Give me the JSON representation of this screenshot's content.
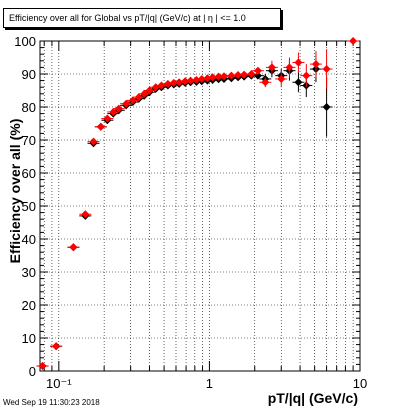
{
  "title": "Efficiency over all for Global vs pT/|q| (GeV/c) at |  η | <= 1.0",
  "timestamp": "Wed Sep 19 11:30:23 2018",
  "chart_data": {
    "type": "scatter",
    "title": "Efficiency over all for Global vs pT/|q| (GeV/c) at |  η | <= 1.0",
    "xlabel": "pT/|q| (GeV/c)",
    "ylabel": "Efficiency over all (%)",
    "x_scale": "log",
    "xlim": [
      0.075,
      10
    ],
    "ylim": [
      0,
      100
    ],
    "x_ticks": [
      {
        "value": 0.1,
        "label": "10⁻¹"
      },
      {
        "value": 1,
        "label": "1"
      },
      {
        "value": 10,
        "label": "10"
      }
    ],
    "y_ticks": [
      0,
      10,
      20,
      30,
      40,
      50,
      60,
      70,
      80,
      90,
      100
    ],
    "grid": true,
    "series": [
      {
        "color": "#000000",
        "marker": "diamond",
        "x": [
          0.078,
          0.096,
          0.125,
          0.15,
          0.17,
          0.19,
          0.21,
          0.23,
          0.25,
          0.28,
          0.31,
          0.34,
          0.37,
          0.4,
          0.44,
          0.48,
          0.53,
          0.58,
          0.63,
          0.69,
          0.75,
          0.82,
          0.89,
          0.97,
          1.05,
          1.15,
          1.25,
          1.4,
          1.55,
          1.7,
          1.9,
          2.1,
          2.35,
          2.6,
          3.0,
          3.4,
          3.9,
          4.4,
          5.1,
          6.0
        ],
        "y": [
          1.5,
          7.5,
          37.5,
          47,
          69,
          74,
          76,
          78,
          79,
          80.5,
          81.5,
          82.5,
          83.5,
          84.5,
          85.5,
          86,
          86.5,
          86.8,
          87,
          87.3,
          87.5,
          87.6,
          87.8,
          88,
          88.2,
          88.4,
          88.5,
          88.7,
          89,
          89.2,
          89.5,
          89.5,
          88.5,
          91,
          89.5,
          91,
          87.5,
          86.5,
          91.5,
          80
        ],
        "yerr": [
          1,
          1,
          1,
          1,
          1,
          0.8,
          0.8,
          0.8,
          0.6,
          0.6,
          0.6,
          0.5,
          0.5,
          0.5,
          0.5,
          0.5,
          0.5,
          0.5,
          0.5,
          0.5,
          0.5,
          0.5,
          0.5,
          0.5,
          0.5,
          0.5,
          0.6,
          0.6,
          0.7,
          0.8,
          1,
          1,
          1.5,
          2,
          2,
          3,
          3,
          3.5,
          4,
          9
        ]
      },
      {
        "color": "#ff0000",
        "marker": "diamond",
        "x": [
          0.078,
          0.096,
          0.125,
          0.15,
          0.17,
          0.19,
          0.21,
          0.23,
          0.25,
          0.28,
          0.31,
          0.34,
          0.37,
          0.4,
          0.44,
          0.48,
          0.53,
          0.58,
          0.63,
          0.69,
          0.75,
          0.82,
          0.89,
          0.97,
          1.05,
          1.15,
          1.25,
          1.4,
          1.55,
          1.7,
          1.9,
          2.1,
          2.35,
          2.6,
          3.0,
          3.4,
          3.9,
          4.4,
          5.1,
          6.0,
          9.0
        ],
        "y": [
          1.5,
          7.5,
          37.5,
          47.5,
          69.5,
          74,
          76.5,
          78.5,
          79.5,
          81,
          82,
          83,
          84,
          85,
          86,
          86.5,
          87,
          87.3,
          87.5,
          87.8,
          88,
          88.2,
          88.5,
          88.7,
          89,
          89.2,
          89.3,
          89.5,
          89.7,
          89.8,
          90,
          91,
          87.5,
          92,
          88.5,
          92,
          93.5,
          89.5,
          93,
          91.5,
          100
        ],
        "yerr": [
          1,
          1,
          1,
          1,
          1,
          0.8,
          0.8,
          0.8,
          0.6,
          0.6,
          0.6,
          0.5,
          0.5,
          0.5,
          0.5,
          0.5,
          0.5,
          0.5,
          0.5,
          0.5,
          0.5,
          0.5,
          0.5,
          0.5,
          0.5,
          0.5,
          0.6,
          0.6,
          0.7,
          0.8,
          1,
          1,
          1.5,
          2,
          2.5,
          3,
          3,
          3.5,
          4,
          6,
          0.3
        ]
      }
    ]
  }
}
